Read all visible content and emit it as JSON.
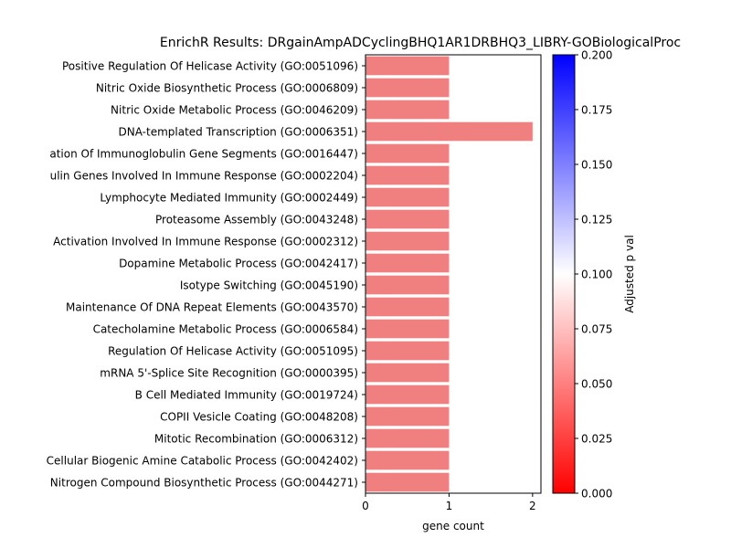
{
  "chart_data": {
    "type": "bar",
    "orientation": "horizontal",
    "title": "EnrichR Results: DRgainAmpADCyclingBHQ1AR1DRBHQ3_LIBRY-GOBiologicalProc",
    "xlabel": "gene count",
    "ylabel": "",
    "xlim": [
      0,
      2.1
    ],
    "x_ticks": [
      0,
      1,
      2
    ],
    "categories": [
      "Positive Regulation Of Helicase Activity (GO:0051096)",
      "Nitric Oxide Biosynthetic Process (GO:0006809)",
      "Nitric Oxide Metabolic Process (GO:0046209)",
      "DNA-templated Transcription (GO:0006351)",
      "ation Of Immunoglobulin Gene Segments (GO:0016447)",
      "ulin Genes Involved In Immune Response (GO:0002204)",
      "Lymphocyte Mediated Immunity (GO:0002449)",
      "Proteasome Assembly (GO:0043248)",
      "Activation Involved In Immune Response (GO:0002312)",
      "Dopamine Metabolic Process (GO:0042417)",
      "Isotype Switching (GO:0045190)",
      "Maintenance Of DNA Repeat Elements (GO:0043570)",
      "Catecholamine Metabolic Process (GO:0006584)",
      "Regulation Of Helicase Activity (GO:0051095)",
      "mRNA 5'-Splice Site Recognition (GO:0000395)",
      "B Cell Mediated Immunity (GO:0019724)",
      "COPII Vesicle Coating (GO:0048208)",
      "Mitotic Recombination (GO:0006312)",
      "Cellular Biogenic Amine Catabolic Process (GO:0042402)",
      "Nitrogen Compound Biosynthetic Process (GO:0044271)"
    ],
    "values": [
      1,
      1,
      1,
      2,
      1,
      1,
      1,
      1,
      1,
      1,
      1,
      1,
      1,
      1,
      1,
      1,
      1,
      1,
      1,
      1
    ],
    "bar_color": "#f08080",
    "colorbar": {
      "label": "Adjusted p val",
      "min": 0.0,
      "max": 0.2,
      "ticks": [
        "0.000",
        "0.025",
        "0.050",
        "0.075",
        "0.100",
        "0.125",
        "0.150",
        "0.175",
        "0.200"
      ],
      "colors": [
        "#ff0000",
        "#ffffff",
        "#0000ff"
      ]
    },
    "grid": false
  }
}
